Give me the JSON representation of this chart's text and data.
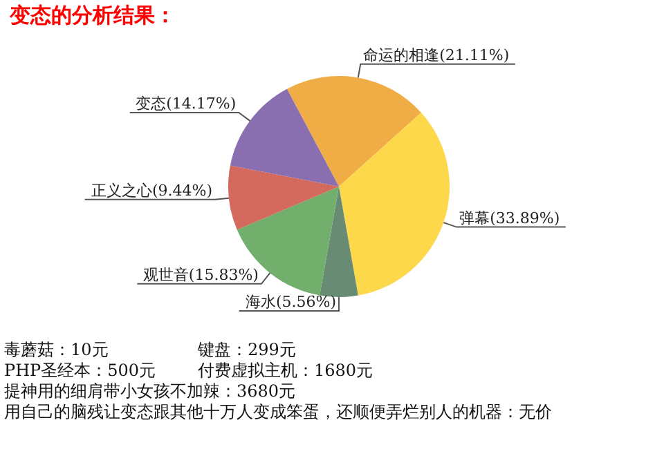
{
  "chart_data": {
    "type": "pie",
    "title": "变态的分析结果：",
    "categories": [
      "命运的相逢",
      "弹幕",
      "海水",
      "观世音",
      "正义之心",
      "变态"
    ],
    "values": [
      21.11,
      33.89,
      5.56,
      15.83,
      9.44,
      14.17
    ],
    "value_labels": [
      "(21.11%)",
      "(33.89%)",
      "(5.56%)",
      "(15.83%)",
      "(9.44%)",
      "(14.17%)"
    ],
    "colors": [
      "#f0ac45",
      "#fdd84b",
      "#688b74",
      "#72ae6c",
      "#d4695e",
      "#8a6fb0"
    ],
    "legend": false,
    "annotations": [
      "毒蘑菇：10元",
      "键盘：299元",
      "PHP圣经本：500元",
      "付费虚拟主机：1680元",
      "提神用的细肩带小女孩不加辣：3680元",
      "用自己的脑残让变态跟其他十万人变成笨蛋，还顺便弄烂别人的机器：无价"
    ]
  }
}
